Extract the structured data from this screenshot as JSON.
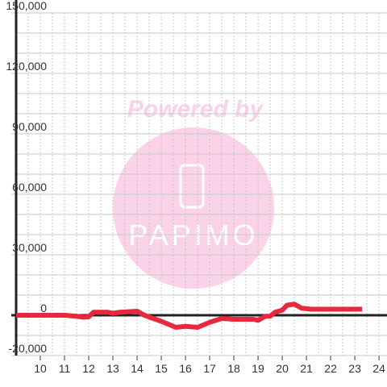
{
  "chart_data": {
    "type": "line",
    "x": [
      9,
      10,
      11,
      11.5,
      11.8,
      12,
      12.2,
      12.8,
      13,
      13.3,
      14,
      14.3,
      15,
      15.6,
      16,
      16.5,
      17,
      17.5,
      18,
      18.8,
      19,
      19.3,
      19.5,
      19.7,
      20,
      20.2,
      20.5,
      20.8,
      21.2,
      23.3
    ],
    "values": [
      0,
      0,
      0,
      -500,
      -1000,
      -800,
      1500,
      1500,
      1000,
      1500,
      2000,
      0,
      -3000,
      -6000,
      -5500,
      -6000,
      -3500,
      -1600,
      -2000,
      -2000,
      -2500,
      -500,
      -500,
      1500,
      2500,
      5000,
      5500,
      3500,
      3000,
      3000
    ],
    "color": "#e8283c",
    "xlim": [
      9,
      24.33
    ],
    "xticks": [
      10,
      11,
      12,
      13,
      14,
      15,
      16,
      17,
      18,
      19,
      20,
      21,
      22,
      23,
      24
    ],
    "xminorticks": [
      9.5,
      10.5,
      11.5,
      12.5,
      13.5,
      14.5,
      15.5,
      16.5,
      17.5,
      18.5,
      19.5,
      20.5,
      21.5,
      22.5,
      23.5
    ],
    "ylim": [
      -20000,
      150000
    ],
    "yticks": [
      {
        "value": -20000,
        "label": "-20,000"
      },
      0,
      {
        "value": 30000,
        "label": "30,000"
      },
      {
        "value": 60000,
        "label": "60,000"
      },
      {
        "value": 90000,
        "label": "90,000"
      },
      {
        "value": 120000,
        "label": "120,000"
      },
      {
        "value": 150000,
        "label": "150,000"
      }
    ],
    "yminorticks": [
      -10000,
      10000,
      20000,
      40000,
      50000,
      70000,
      80000,
      100000,
      110000,
      130000,
      140000
    ],
    "grid": true
  },
  "watermark": {
    "line1": "Powered by",
    "line2": "PAPIMO"
  }
}
